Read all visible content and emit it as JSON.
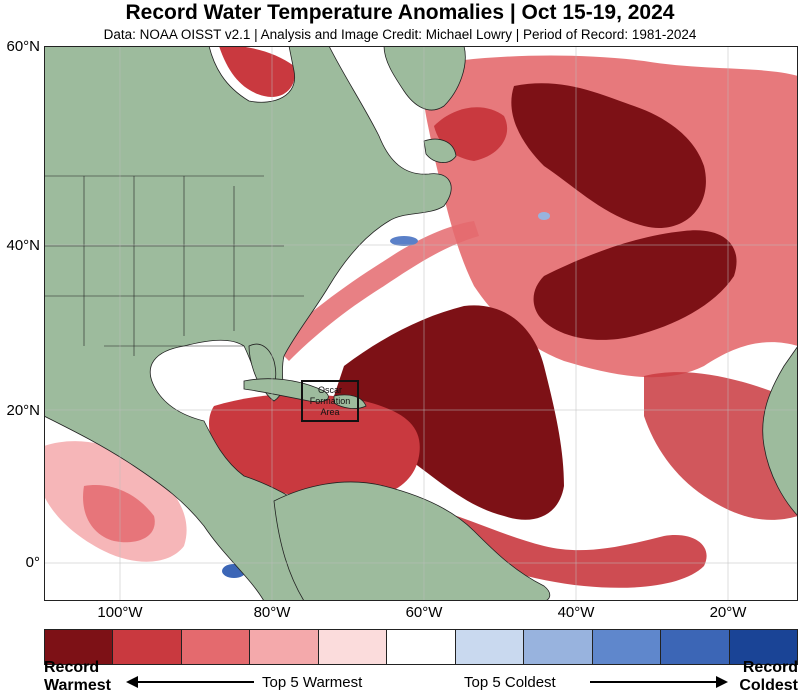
{
  "title": "Record Water Temperature Anomalies | Oct 15-19, 2024",
  "subtitle": "Data: NOAA OISST v2.1 | Analysis and Image Credit: Michael Lowry | Period of Record: 1981-2024",
  "map": {
    "lat_labels": [
      "60°N",
      "40°N",
      "20°N",
      "0°"
    ],
    "lon_labels": [
      "100°W",
      "80°W",
      "60°W",
      "40°W",
      "20°W"
    ],
    "annotation": [
      "Oscar",
      "Formation",
      "Area"
    ],
    "colors": {
      "ocean": "#ffffff",
      "land": "#9dbb9d",
      "record_warm": "#7d1116",
      "strong_warm": "#c9393f",
      "warm": "#e46a6e",
      "light_warm": "#f4a9ab",
      "faint_warm": "#fbdcdc",
      "cold": "#5a80c8"
    }
  },
  "legend": {
    "colors": [
      "#7d1116",
      "#c9393f",
      "#e46a6e",
      "#f4a9ab",
      "#fbdcdc",
      "#ffffff",
      "#c9d9ef",
      "#98b3de",
      "#5f87cc",
      "#3c66b6",
      "#1a4496"
    ],
    "record_warmest_line1": "Record",
    "record_warmest_line2": "Warmest",
    "top5_warmest": "Top 5 Warmest",
    "top5_coldest": "Top 5 Coldest",
    "record_coldest_line1": "Record",
    "record_coldest_line2": "Coldest"
  }
}
